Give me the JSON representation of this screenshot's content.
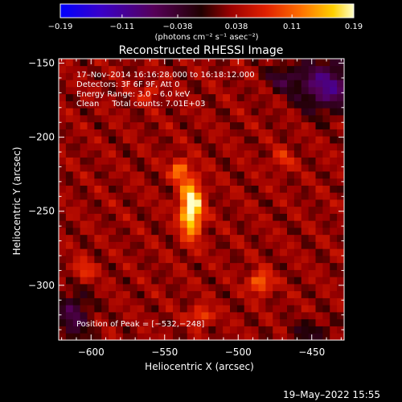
{
  "chart_data": {
    "type": "heatmap",
    "title": "Reconstructed RHESSI Image",
    "xlabel": "Heliocentric X (arcsec)",
    "ylabel": "Heliocentric Y (arcsec)",
    "xlim": [
      -622,
      -428
    ],
    "ylim": [
      -337,
      -147
    ],
    "x_ticks": [
      -600,
      -550,
      -500,
      -450
    ],
    "y_ticks": [
      -150,
      -200,
      -250,
      -300
    ],
    "x_tick_labels": [
      "−600",
      "−550",
      "−500",
      "−450"
    ],
    "y_tick_labels": [
      "−150",
      "−200",
      "−250",
      "−300"
    ],
    "colorbar": {
      "range": [
        -0.19,
        0.19
      ],
      "ticks": [
        -0.19,
        -0.11,
        -0.038,
        0.038,
        0.11,
        0.19
      ],
      "tick_labels": [
        "−0.19",
        "−0.11",
        "−0.038",
        "0.038",
        "0.11",
        "0.19"
      ],
      "unit_label": "(photons cm⁻² s⁻¹ asec⁻²)"
    },
    "annotations": [
      "17–Nov–2014 16:16:28.000 to 16:18:12.000",
      "Detectors: 3F 6F 9F, Att 0",
      "Energy Range: 3.0 – 6.0 keV",
      "Clean     Total counts: 7.01E+03"
    ],
    "peak_label": "Position of Peak = [−532,−248]",
    "peak": {
      "x": -532,
      "y": -248,
      "value": 0.19
    },
    "sources": [
      {
        "x": -532,
        "y": -248,
        "value": 0.19,
        "sx": 5,
        "sy": 13
      },
      {
        "x": -540,
        "y": -222,
        "value": 0.1,
        "sx": 4,
        "sy": 5
      },
      {
        "x": -485,
        "y": -298,
        "value": 0.1,
        "sx": 5,
        "sy": 5
      },
      {
        "x": -525,
        "y": -320,
        "value": 0.08,
        "sx": 5,
        "sy": 4
      },
      {
        "x": -560,
        "y": -170,
        "value": 0.06,
        "sx": 4,
        "sy": 4
      },
      {
        "x": -605,
        "y": -290,
        "value": 0.06,
        "sx": 5,
        "sy": 5
      },
      {
        "x": -470,
        "y": -215,
        "value": 0.05,
        "sx": 5,
        "sy": 5
      }
    ],
    "negative_regions": [
      {
        "x": -440,
        "y": -165,
        "value": -0.12,
        "sx": 14,
        "sy": 12
      },
      {
        "x": -470,
        "y": -160,
        "value": -0.06,
        "sx": 8,
        "sy": 6
      },
      {
        "x": -612,
        "y": -320,
        "value": -0.08,
        "sx": 8,
        "sy": 12
      },
      {
        "x": -450,
        "y": -332,
        "value": -0.05,
        "sx": 10,
        "sy": 6
      }
    ],
    "grid": false
  },
  "footer": {
    "date": "19–May–2022 15:55"
  },
  "colors": {
    "background": "#000000",
    "text": "#ffffff"
  }
}
